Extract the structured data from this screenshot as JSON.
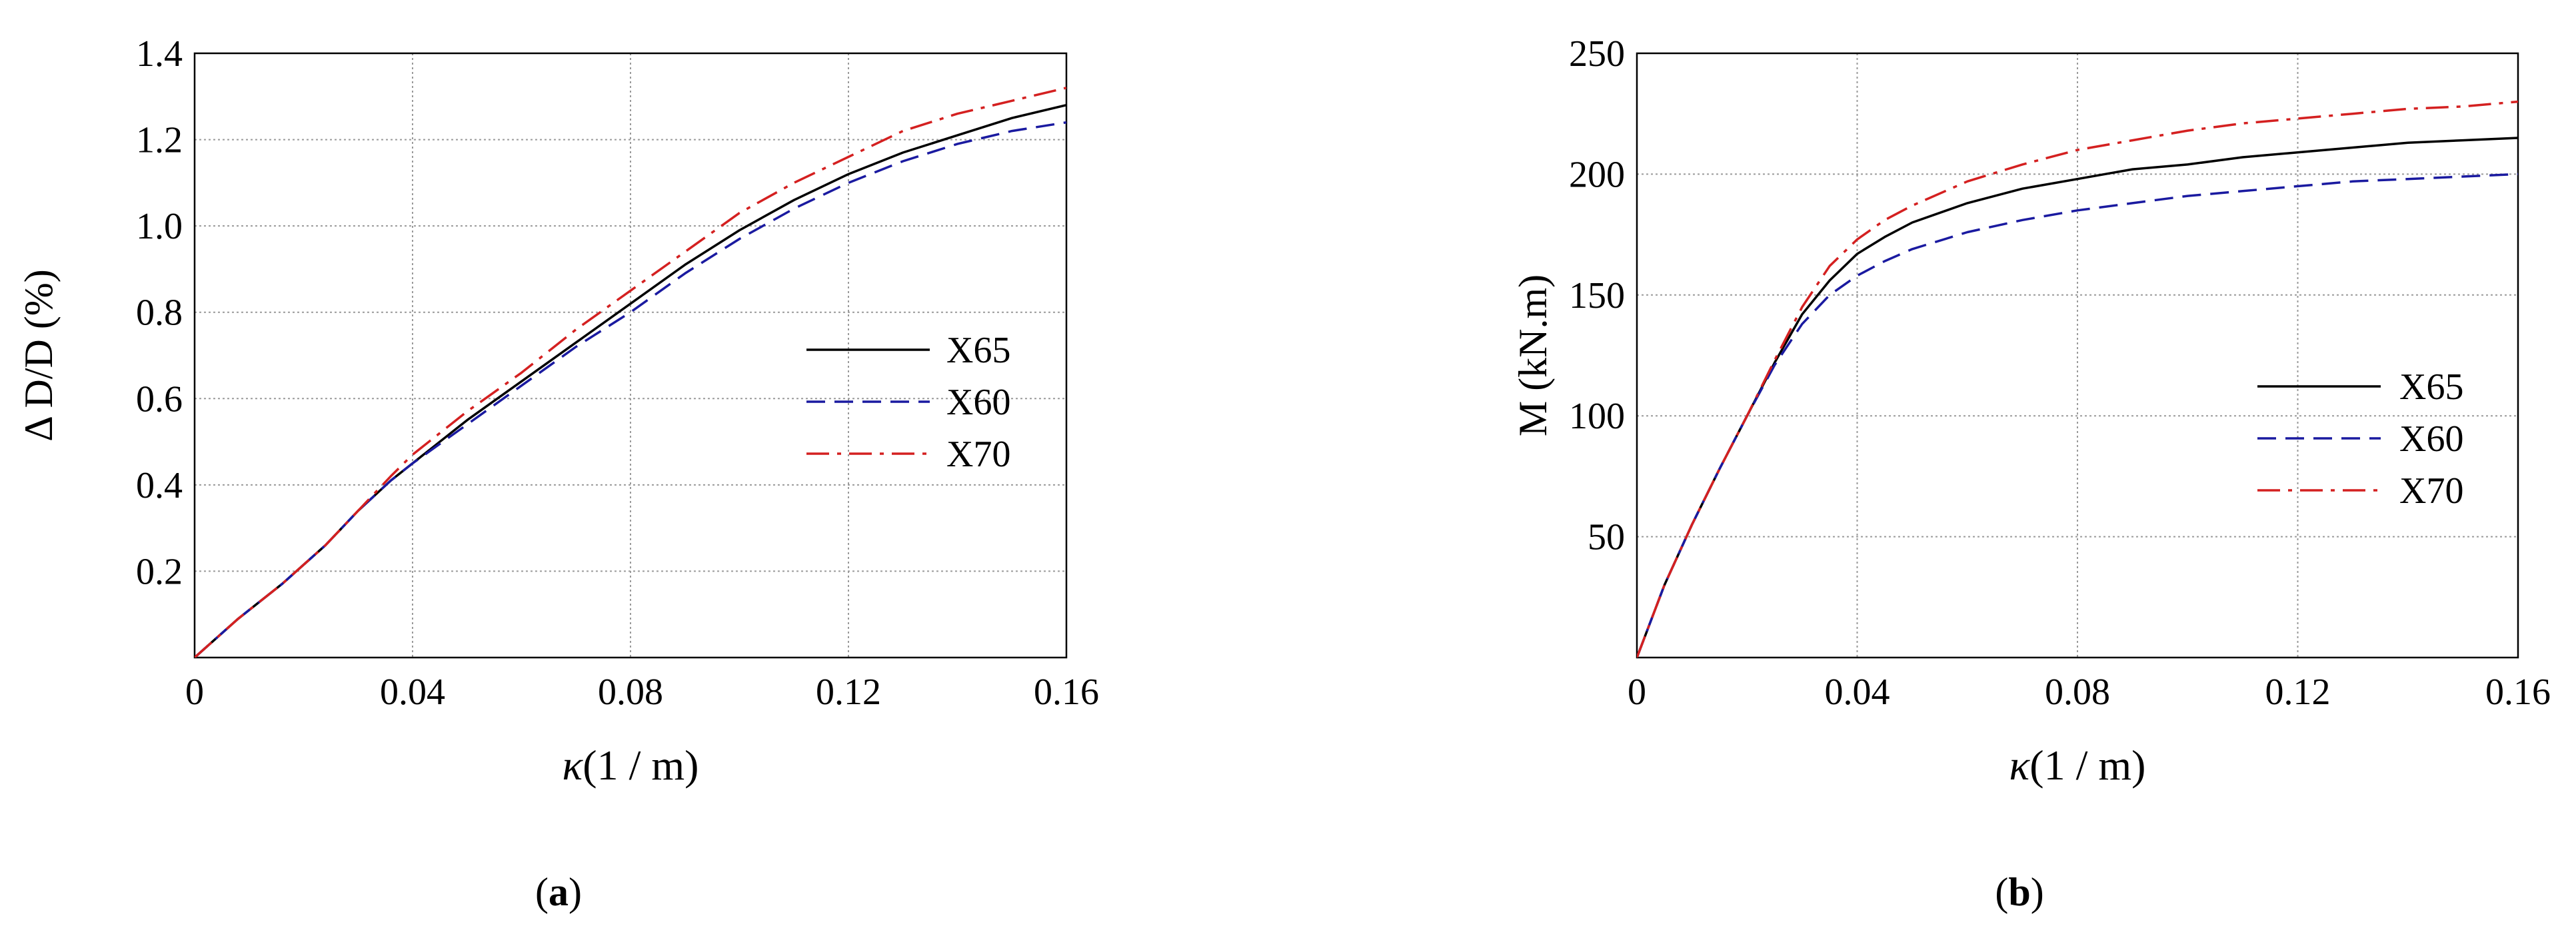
{
  "colors": {
    "X65": "#000000",
    "X60": "#1a1aa0",
    "X70": "#d42020",
    "grid": "#9a9a9a",
    "axis": "#000000"
  },
  "panels": [
    {
      "label_open": "(",
      "label_letter": "a",
      "label_close": ")"
    },
    {
      "label_open": "(",
      "label_letter": "b",
      "label_close": ")"
    }
  ],
  "chart_data": [
    {
      "type": "line",
      "xlabel_symbol": "κ",
      "xlabel_unit": "(1 / m)",
      "ylabel": "Δ D/D (%)",
      "xlim": [
        0,
        0.16
      ],
      "ylim": [
        0,
        1.4
      ],
      "xticks": [
        "0",
        "0.04",
        "0.08",
        "0.12",
        "0.16"
      ],
      "xtick_values": [
        0,
        0.04,
        0.08,
        0.12,
        0.16
      ],
      "yticks": [
        "0.2",
        "0.4",
        "0.6",
        "0.8",
        "1.0",
        "1.2",
        "1.4"
      ],
      "ytick_values": [
        0.2,
        0.4,
        0.6,
        0.8,
        1.0,
        1.2,
        1.4
      ],
      "grid": true,
      "legend_position": "right-middle",
      "series": [
        {
          "name": "X65",
          "style": "solid",
          "x": [
            0,
            0.008,
            0.016,
            0.024,
            0.03,
            0.036,
            0.04,
            0.05,
            0.06,
            0.07,
            0.08,
            0.09,
            0.1,
            0.11,
            0.12,
            0.13,
            0.14,
            0.15,
            0.16
          ],
          "y": [
            0,
            0.09,
            0.17,
            0.26,
            0.34,
            0.41,
            0.45,
            0.55,
            0.64,
            0.73,
            0.82,
            0.91,
            0.99,
            1.06,
            1.12,
            1.17,
            1.21,
            1.25,
            1.28
          ]
        },
        {
          "name": "X60",
          "style": "dashed",
          "x": [
            0,
            0.008,
            0.016,
            0.024,
            0.03,
            0.036,
            0.04,
            0.05,
            0.06,
            0.07,
            0.08,
            0.09,
            0.1,
            0.11,
            0.12,
            0.13,
            0.14,
            0.15,
            0.16
          ],
          "y": [
            0,
            0.09,
            0.17,
            0.26,
            0.34,
            0.41,
            0.45,
            0.54,
            0.63,
            0.72,
            0.8,
            0.89,
            0.97,
            1.04,
            1.1,
            1.15,
            1.19,
            1.22,
            1.24
          ]
        },
        {
          "name": "X70",
          "style": "dashdot",
          "x": [
            0,
            0.008,
            0.016,
            0.024,
            0.03,
            0.036,
            0.04,
            0.05,
            0.06,
            0.07,
            0.08,
            0.09,
            0.1,
            0.11,
            0.12,
            0.13,
            0.14,
            0.15,
            0.16
          ],
          "y": [
            0,
            0.09,
            0.17,
            0.26,
            0.34,
            0.42,
            0.47,
            0.57,
            0.66,
            0.76,
            0.85,
            0.94,
            1.03,
            1.1,
            1.16,
            1.22,
            1.26,
            1.29,
            1.32
          ]
        }
      ]
    },
    {
      "type": "line",
      "xlabel_symbol": "κ",
      "xlabel_unit": "(1 / m)",
      "ylabel": "M (kN.m)",
      "xlim": [
        0,
        0.16
      ],
      "ylim": [
        0,
        250
      ],
      "xticks": [
        "0",
        "0.04",
        "0.08",
        "0.12",
        "0.16"
      ],
      "xtick_values": [
        0,
        0.04,
        0.08,
        0.12,
        0.16
      ],
      "yticks": [
        "50",
        "100",
        "150",
        "200",
        "250"
      ],
      "ytick_values": [
        50,
        100,
        150,
        200,
        250
      ],
      "grid": true,
      "legend_position": "right-middle",
      "series": [
        {
          "name": "X65",
          "style": "solid",
          "x": [
            0,
            0.005,
            0.01,
            0.015,
            0.02,
            0.025,
            0.03,
            0.035,
            0.04,
            0.045,
            0.05,
            0.06,
            0.07,
            0.08,
            0.09,
            0.1,
            0.11,
            0.12,
            0.13,
            0.14,
            0.15,
            0.16
          ],
          "y": [
            0,
            30,
            55,
            78,
            100,
            122,
            142,
            156,
            167,
            174,
            180,
            188,
            194,
            198,
            202,
            204,
            207,
            209,
            211,
            213,
            214,
            215
          ]
        },
        {
          "name": "X60",
          "style": "dashed",
          "x": [
            0,
            0.005,
            0.01,
            0.015,
            0.02,
            0.025,
            0.03,
            0.035,
            0.04,
            0.045,
            0.05,
            0.06,
            0.07,
            0.08,
            0.09,
            0.1,
            0.11,
            0.12,
            0.13,
            0.14,
            0.15,
            0.16
          ],
          "y": [
            0,
            30,
            55,
            78,
            100,
            121,
            138,
            150,
            158,
            164,
            169,
            176,
            181,
            185,
            188,
            191,
            193,
            195,
            197,
            198,
            199,
            200
          ]
        },
        {
          "name": "X70",
          "style": "dashdot",
          "x": [
            0,
            0.005,
            0.01,
            0.015,
            0.02,
            0.025,
            0.03,
            0.035,
            0.04,
            0.045,
            0.05,
            0.06,
            0.07,
            0.08,
            0.09,
            0.1,
            0.11,
            0.12,
            0.13,
            0.14,
            0.15,
            0.16
          ],
          "y": [
            0,
            30,
            55,
            78,
            100,
            123,
            145,
            162,
            173,
            181,
            187,
            197,
            204,
            210,
            214,
            218,
            221,
            223,
            225,
            227,
            228,
            230
          ]
        }
      ]
    }
  ]
}
